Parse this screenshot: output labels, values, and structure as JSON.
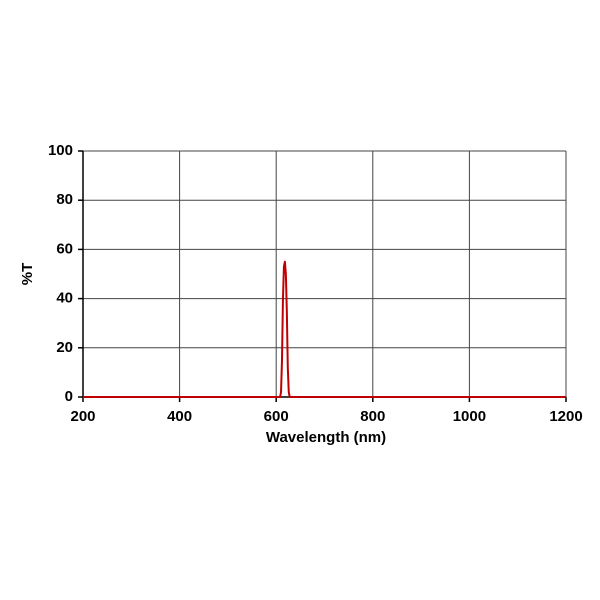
{
  "chart_data": {
    "type": "line",
    "x_label": "Wavelength (nm)",
    "y_label": "%T",
    "x": [
      200,
      600,
      608,
      610,
      612,
      614,
      616,
      618,
      620,
      622,
      624,
      626,
      628,
      640,
      1200
    ],
    "series": [
      {
        "color": "#c00000",
        "values": [
          0,
          0,
          0,
          2,
          15,
          40,
          53,
          55,
          50,
          35,
          12,
          2,
          0,
          0,
          0
        ]
      }
    ],
    "xlim": [
      200,
      1200
    ],
    "xticks": [
      200,
      400,
      600,
      800,
      1000,
      1200
    ],
    "ylim": [
      0,
      100
    ],
    "yticks": [
      0,
      20,
      40,
      60,
      80,
      100
    ],
    "grid": true
  }
}
